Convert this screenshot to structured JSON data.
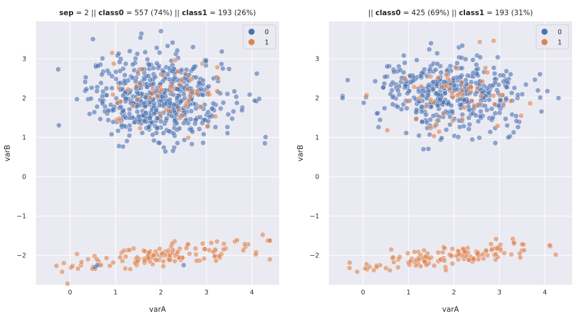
{
  "colors": {
    "class0": "#4c72b0",
    "class1": "#dd8452",
    "plot_bg": "#eaeaf2",
    "grid": "#ffffff"
  },
  "chart_data": [
    {
      "type": "scatter",
      "title_parts": [
        {
          "text": "sep",
          "bold": true
        },
        {
          "text": " = 2 || ",
          "bold": false
        },
        {
          "text": "class0",
          "bold": true
        },
        {
          "text": " = 557 (74%)  || ",
          "bold": false
        },
        {
          "text": "class1",
          "bold": true
        },
        {
          "text": " = 193 (26%)",
          "bold": false
        }
      ],
      "xlabel": "varA",
      "ylabel": "varB",
      "xlim": [
        -0.75,
        4.6
      ],
      "ylim": [
        -2.75,
        3.95
      ],
      "xticks": [
        0,
        1,
        2,
        3,
        4
      ],
      "yticks": [
        -2,
        -1,
        0,
        1,
        2,
        3
      ],
      "ytick_labels": [
        "−2",
        "−1",
        "0",
        "1",
        "2",
        "3"
      ],
      "grid": true,
      "legend_position": "top-right",
      "legend": [
        "0",
        "1"
      ],
      "class0": {
        "n": 557,
        "x_mean": 2.0,
        "x_sd": 0.78,
        "y_mean": 2.0,
        "y_sd": 0.55,
        "x_range": [
          -0.45,
          4.3
        ],
        "y_range": [
          0.55,
          3.7
        ]
      },
      "class1_upper": {
        "n": 58,
        "x_mean": 2.15,
        "x_sd": 0.7,
        "y_mean": 1.95,
        "y_sd": 0.55,
        "x_range": [
          -0.5,
          4.0
        ],
        "y_range": [
          0.6,
          3.5
        ]
      },
      "class1_lower": {
        "n": 135,
        "x_min": -0.35,
        "x_max": 4.4,
        "y_at_min": -2.3,
        "y_slope": 0.12,
        "y_sd": 0.13
      },
      "class0_lower": {
        "n": 3,
        "points": [
          [
            0.55,
            -2.3
          ],
          [
            0.6,
            -2.25
          ],
          [
            2.5,
            -2.25
          ]
        ]
      }
    },
    {
      "type": "scatter",
      "title_parts": [
        {
          "text": "|| ",
          "bold": false
        },
        {
          "text": "class0",
          "bold": true
        },
        {
          "text": " = 425 (69%)  || ",
          "bold": false
        },
        {
          "text": "class1",
          "bold": true
        },
        {
          "text": " = 193 (31%)",
          "bold": false
        }
      ],
      "xlabel": "varA",
      "ylabel": "varB",
      "xlim": [
        -0.75,
        4.6
      ],
      "ylim": [
        -2.75,
        3.95
      ],
      "xticks": [
        0,
        1,
        2,
        3,
        4
      ],
      "yticks": [
        -2,
        -1,
        0,
        1,
        2,
        3
      ],
      "ytick_labels": [
        "−2",
        "−1",
        "0",
        "1",
        "2",
        "3"
      ],
      "grid": true,
      "legend_position": "top-right",
      "legend": [
        "0",
        "1"
      ],
      "class0": {
        "n": 425,
        "x_mean": 1.95,
        "x_sd": 0.78,
        "y_mean": 2.05,
        "y_sd": 0.5,
        "x_range": [
          -0.45,
          4.3
        ],
        "y_range": [
          0.7,
          3.6
        ]
      },
      "class1_upper": {
        "n": 58,
        "x_mean": 2.0,
        "x_sd": 0.7,
        "y_mean": 2.1,
        "y_sd": 0.5,
        "x_range": [
          -0.5,
          4.0
        ],
        "y_range": [
          0.55,
          3.5
        ]
      },
      "class1_lower": {
        "n": 135,
        "x_min": -0.35,
        "x_max": 4.4,
        "y_at_min": -2.3,
        "y_slope": 0.12,
        "y_sd": 0.13
      },
      "class0_lower": {
        "n": 0,
        "points": []
      }
    }
  ]
}
